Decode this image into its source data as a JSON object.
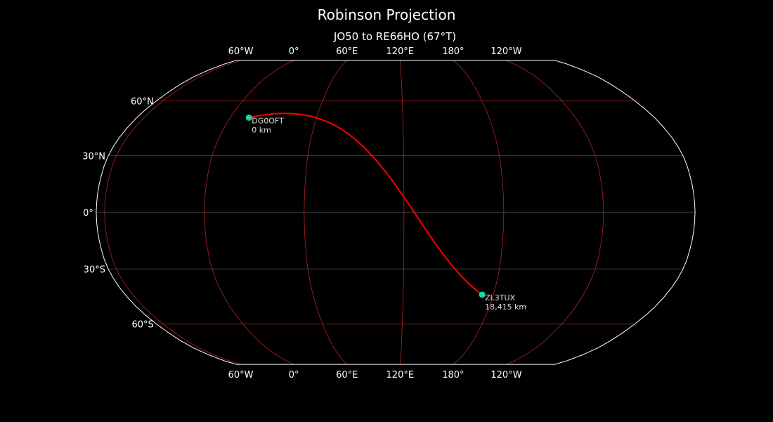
{
  "title": "Robinson Projection",
  "subtitle": "JO50 to RE66HO (67°T)",
  "map": {
    "projection": "Robinson",
    "central_longitude": 115,
    "colors": {
      "background": "#000000",
      "coastline": "#8c8c8c",
      "meridians": "#b22222",
      "parallels_polar": "#b22222",
      "parallels": "#666666",
      "path": "#ff0000",
      "station": "#1ed7a0",
      "outline": "#ffffff"
    },
    "longitude_ticks": [
      {
        "lon": -60,
        "label": "60°W"
      },
      {
        "lon": 0,
        "label": "0°"
      },
      {
        "lon": 60,
        "label": "60°E"
      },
      {
        "lon": 120,
        "label": "120°E"
      },
      {
        "lon": 180,
        "label": "180°"
      },
      {
        "lon": 240,
        "label": "120°W"
      }
    ],
    "latitude_ticks": [
      {
        "lat": 60,
        "label": "60°N"
      },
      {
        "lat": 30,
        "label": "30°N"
      },
      {
        "lat": 0,
        "label": "0°"
      },
      {
        "lat": -30,
        "label": "30°S"
      },
      {
        "lat": -60,
        "label": "60°S"
      }
    ],
    "stations": [
      {
        "call": "DG0OFT",
        "distance": "0 km",
        "lat": 50.5,
        "lon": 13
      },
      {
        "call": "ZL3TUX",
        "distance": "18,415 km",
        "lat": -43.7,
        "lon": 172.6
      }
    ]
  }
}
